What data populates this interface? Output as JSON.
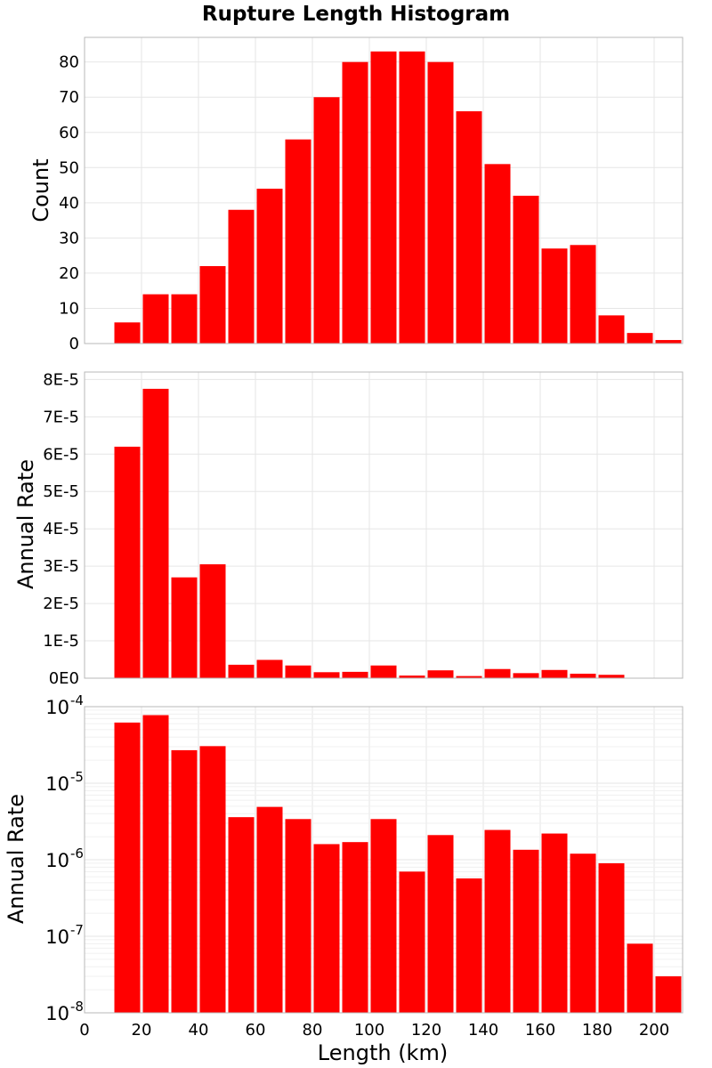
{
  "chart_data": [
    {
      "type": "bar",
      "title": "Rupture Length Histogram",
      "ylabel": "Count",
      "xlabel": "",
      "xlim": [
        0,
        210
      ],
      "ylim": [
        0,
        87
      ],
      "scale": "linear",
      "bin_width": 10,
      "x": [
        15,
        25,
        35,
        45,
        55,
        65,
        75,
        85,
        95,
        105,
        115,
        125,
        135,
        145,
        155,
        165,
        175,
        185,
        195,
        205
      ],
      "values": [
        6,
        14,
        14,
        22,
        38,
        44,
        58,
        70,
        80,
        83,
        83,
        80,
        66,
        51,
        42,
        27,
        28,
        8,
        3,
        1
      ],
      "yticks": [
        0,
        10,
        20,
        30,
        40,
        50,
        60,
        70,
        80
      ],
      "ytick_labels": [
        "0",
        "10",
        "20",
        "30",
        "40",
        "50",
        "60",
        "70",
        "80"
      ],
      "grid": true,
      "color": "#ff0000"
    },
    {
      "type": "bar",
      "title": "",
      "ylabel": "Annual Rate",
      "xlabel": "",
      "xlim": [
        0,
        210
      ],
      "ylim": [
        0,
        8.2e-05
      ],
      "scale": "linear",
      "bin_width": 10,
      "x": [
        15,
        25,
        35,
        45,
        55,
        65,
        75,
        85,
        95,
        105,
        115,
        125,
        135,
        145,
        155,
        165,
        175,
        185,
        195,
        205
      ],
      "values": [
        6.2e-05,
        7.75e-05,
        2.7e-05,
        3.05e-05,
        3.6e-06,
        4.9e-06,
        3.4e-06,
        1.6e-06,
        1.7e-06,
        3.4e-06,
        7e-07,
        2.1e-06,
        5.7e-07,
        2.45e-06,
        1.35e-06,
        2.2e-06,
        1.2e-06,
        9e-07,
        8e-08,
        3e-08
      ],
      "yticks": [
        0,
        1e-05,
        2e-05,
        3e-05,
        4e-05,
        5e-05,
        6e-05,
        7e-05,
        8e-05
      ],
      "ytick_labels": [
        "0E0",
        "1E-5",
        "2E-5",
        "3E-5",
        "4E-5",
        "5E-5",
        "6E-5",
        "7E-5",
        "8E-5"
      ],
      "grid": true,
      "color": "#ff0000"
    },
    {
      "type": "bar",
      "title": "",
      "ylabel": "Annual Rate",
      "xlabel": "Length (km)",
      "xlim": [
        0,
        210
      ],
      "ylim": [
        1e-08,
        0.0001
      ],
      "scale": "log",
      "bin_width": 10,
      "x": [
        15,
        25,
        35,
        45,
        55,
        65,
        75,
        85,
        95,
        105,
        115,
        125,
        135,
        145,
        155,
        165,
        175,
        185,
        195,
        205
      ],
      "values": [
        6.2e-05,
        7.75e-05,
        2.7e-05,
        3.05e-05,
        3.6e-06,
        4.9e-06,
        3.4e-06,
        1.6e-06,
        1.7e-06,
        3.4e-06,
        7e-07,
        2.1e-06,
        5.7e-07,
        2.45e-06,
        1.35e-06,
        2.2e-06,
        1.2e-06,
        9e-07,
        8e-08,
        3e-08
      ],
      "ytick_exponents": [
        -8,
        -7,
        -6,
        -5,
        -4
      ],
      "ytick_base": "10",
      "xticks": [
        0,
        20,
        40,
        60,
        80,
        100,
        120,
        140,
        160,
        180,
        200
      ],
      "xtick_labels": [
        "0",
        "20",
        "40",
        "60",
        "80",
        "100",
        "120",
        "140",
        "160",
        "180",
        "200"
      ],
      "grid": true,
      "color": "#ff0000"
    }
  ]
}
